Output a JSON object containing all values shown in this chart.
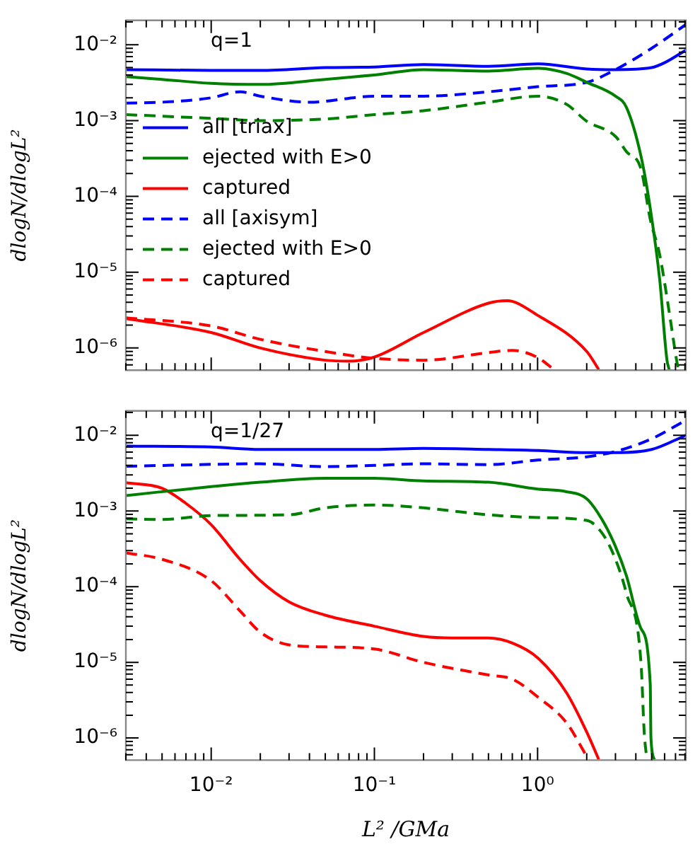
{
  "chart_data": [
    {
      "type": "line",
      "annotations": [
        "q=1"
      ],
      "ylabel": "dlogN/dlogL²",
      "log": "xy",
      "legend": "left",
      "tick_labels": "y",
      "marker": "none",
      "xlim": [
        0.003,
        8.1
      ],
      "ylim": [
        5.1e-07,
        0.021
      ],
      "xticks": [
        {
          "value": 0.003,
          "label": null
        },
        {
          "value": 0.004,
          "label": null
        },
        {
          "value": 0.005,
          "label": null
        },
        {
          "value": 0.006,
          "label": null
        },
        {
          "value": 0.007,
          "label": null
        },
        {
          "value": 0.008,
          "label": null
        },
        {
          "value": 0.009,
          "label": null
        },
        {
          "value": 0.01,
          "label": null
        },
        {
          "value": 0.02,
          "label": null
        },
        {
          "value": 0.03,
          "label": null
        },
        {
          "value": 0.04,
          "label": null
        },
        {
          "value": 0.05,
          "label": null
        },
        {
          "value": 0.06,
          "label": null
        },
        {
          "value": 0.07,
          "label": null
        },
        {
          "value": 0.08,
          "label": null
        },
        {
          "value": 0.09,
          "label": null
        },
        {
          "value": 0.1,
          "label": null
        },
        {
          "value": 0.2,
          "label": null
        },
        {
          "value": 0.3,
          "label": null
        },
        {
          "value": 0.4,
          "label": null
        },
        {
          "value": 0.5,
          "label": null
        },
        {
          "value": 0.6,
          "label": null
        },
        {
          "value": 0.7,
          "label": null
        },
        {
          "value": 0.8,
          "label": null
        },
        {
          "value": 0.9,
          "label": null
        },
        {
          "value": 1,
          "label": null
        },
        {
          "value": 2,
          "label": null
        },
        {
          "value": 3,
          "label": null
        },
        {
          "value": 4,
          "label": null
        },
        {
          "value": 5,
          "label": null
        },
        {
          "value": 6,
          "label": null
        },
        {
          "value": 7,
          "label": null
        },
        {
          "value": 8,
          "label": null
        }
      ],
      "yticks": [
        {
          "value": 6e-07,
          "label": null
        },
        {
          "value": 7e-07,
          "label": null
        },
        {
          "value": 8e-07,
          "label": null
        },
        {
          "value": 9e-07,
          "label": null
        },
        {
          "value": 1e-06,
          "label": "10⁻⁶"
        },
        {
          "value": 2e-06,
          "label": null
        },
        {
          "value": 3e-06,
          "label": null
        },
        {
          "value": 4e-06,
          "label": null
        },
        {
          "value": 5e-06,
          "label": null
        },
        {
          "value": 6e-06,
          "label": null
        },
        {
          "value": 7e-06,
          "label": null
        },
        {
          "value": 8e-06,
          "label": null
        },
        {
          "value": 9e-06,
          "label": null
        },
        {
          "value": 1e-05,
          "label": "10⁻⁵"
        },
        {
          "value": 2e-05,
          "label": null
        },
        {
          "value": 3e-05,
          "label": null
        },
        {
          "value": 4e-05,
          "label": null
        },
        {
          "value": 5e-05,
          "label": null
        },
        {
          "value": 6e-05,
          "label": null
        },
        {
          "value": 7e-05,
          "label": null
        },
        {
          "value": 8e-05,
          "label": null
        },
        {
          "value": 9e-05,
          "label": null
        },
        {
          "value": 0.0001,
          "label": "10⁻⁴"
        },
        {
          "value": 0.0002,
          "label": null
        },
        {
          "value": 0.0003,
          "label": null
        },
        {
          "value": 0.0004,
          "label": null
        },
        {
          "value": 0.0005,
          "label": null
        },
        {
          "value": 0.0006,
          "label": null
        },
        {
          "value": 0.0007,
          "label": null
        },
        {
          "value": 0.0008,
          "label": null
        },
        {
          "value": 0.0009,
          "label": null
        },
        {
          "value": 0.001,
          "label": "10⁻³"
        },
        {
          "value": 0.002,
          "label": null
        },
        {
          "value": 0.003,
          "label": null
        },
        {
          "value": 0.004,
          "label": null
        },
        {
          "value": 0.005,
          "label": null
        },
        {
          "value": 0.006,
          "label": null
        },
        {
          "value": 0.007,
          "label": null
        },
        {
          "value": 0.008,
          "label": null
        },
        {
          "value": 0.009,
          "label": null
        },
        {
          "value": 0.01,
          "label": "10⁻²"
        },
        {
          "value": 0.02,
          "label": null
        }
      ],
      "series": [
        {
          "name": "all [triax]",
          "color": "#0000ff",
          "line_style": "solid",
          "x": [
            0.003,
            0.01,
            0.02,
            0.05,
            0.1,
            0.2,
            0.5,
            1,
            2,
            3,
            5,
            6,
            8.1
          ],
          "values": [
            0.0047,
            0.0046,
            0.0046,
            0.005,
            0.0051,
            0.0055,
            0.0052,
            0.0056,
            0.0048,
            0.0047,
            0.005,
            0.0058,
            0.0085
          ]
        },
        {
          "name": "ejected with E>0",
          "color": "#008000",
          "line_style": "solid",
          "x": [
            0.003,
            0.005,
            0.01,
            0.02,
            0.05,
            0.1,
            0.2,
            0.5,
            1,
            1.5,
            2,
            3,
            3.5,
            4.3,
            4.9,
            5.6,
            6.2,
            6.4
          ],
          "values": [
            0.0038,
            0.0035,
            0.0031,
            0.003,
            0.0035,
            0.004,
            0.0047,
            0.0045,
            0.0049,
            0.0042,
            0.0032,
            0.0021,
            0.0015,
            0.00034,
            7e-05,
            8e-06,
            7e-07,
            5.2e-07
          ]
        },
        {
          "name": "captured",
          "color": "#ff0000",
          "line_style": "solid",
          "x": [
            0.003,
            0.01,
            0.02,
            0.05,
            0.07,
            0.1,
            0.2,
            0.5,
            0.65,
            1,
            2,
            2.37
          ],
          "values": [
            2.45e-06,
            1.6e-06,
            1e-06,
            6.9e-07,
            6.7e-07,
            7.6e-07,
            1.6e-06,
            3.9e-06,
            4.2e-06,
            2.7e-06,
            9e-07,
            5.2e-07
          ]
        },
        {
          "name": "all [axisym]",
          "color": "#0000ff",
          "line_style": "dashed",
          "x": [
            0.003,
            0.005,
            0.01,
            0.015,
            0.02,
            0.04,
            0.1,
            0.2,
            0.5,
            1,
            2,
            3,
            5,
            8.1
          ],
          "values": [
            0.0017,
            0.00175,
            0.002,
            0.0024,
            0.0021,
            0.00175,
            0.0021,
            0.0021,
            0.0024,
            0.0028,
            0.0032,
            0.0047,
            0.009,
            0.0185
          ]
        },
        {
          "name": "ejected with E>0",
          "color": "#008000",
          "line_style": "dashed",
          "x": [
            0.003,
            0.01,
            0.02,
            0.05,
            0.1,
            0.2,
            0.5,
            1,
            1.5,
            2,
            3,
            3.5,
            4.3,
            4.9,
            5.6,
            6.45,
            7.1,
            7.3
          ],
          "values": [
            0.0012,
            0.00107,
            0.001,
            0.00105,
            0.0012,
            0.00135,
            0.00175,
            0.0021,
            0.00165,
            0.00098,
            0.00062,
            0.00039,
            0.00023,
            5e-05,
            1.7e-05,
            2.7e-06,
            7e-07,
            5.2e-07
          ]
        },
        {
          "name": "captured",
          "color": "#ff0000",
          "line_style": "dashed",
          "x": [
            0.003,
            0.01,
            0.02,
            0.05,
            0.1,
            0.2,
            0.5,
            0.7,
            1,
            1.26
          ],
          "values": [
            2.5e-06,
            1.95e-06,
            1.3e-06,
            9e-07,
            7.3e-07,
            6.9e-07,
            8.7e-07,
            9.3e-07,
            7.5e-07,
            5.2e-07
          ]
        }
      ]
    },
    {
      "type": "line",
      "annotations": [
        "q=1/27"
      ],
      "xlabel": "L² /GMa",
      "ylabel": "dlogN/dlogL²",
      "log": "xy",
      "marker": "none",
      "xlim": [
        0.003,
        8.1
      ],
      "ylim": [
        5.1e-07,
        0.021
      ],
      "xticks": [
        {
          "value": 0.003,
          "label": null
        },
        {
          "value": 0.004,
          "label": null
        },
        {
          "value": 0.005,
          "label": null
        },
        {
          "value": 0.006,
          "label": null
        },
        {
          "value": 0.007,
          "label": null
        },
        {
          "value": 0.008,
          "label": null
        },
        {
          "value": 0.009,
          "label": null
        },
        {
          "value": 0.01,
          "label": "10⁻²"
        },
        {
          "value": 0.02,
          "label": null
        },
        {
          "value": 0.03,
          "label": null
        },
        {
          "value": 0.04,
          "label": null
        },
        {
          "value": 0.05,
          "label": null
        },
        {
          "value": 0.06,
          "label": null
        },
        {
          "value": 0.07,
          "label": null
        },
        {
          "value": 0.08,
          "label": null
        },
        {
          "value": 0.09,
          "label": null
        },
        {
          "value": 0.1,
          "label": "10⁻¹"
        },
        {
          "value": 0.2,
          "label": null
        },
        {
          "value": 0.3,
          "label": null
        },
        {
          "value": 0.4,
          "label": null
        },
        {
          "value": 0.5,
          "label": null
        },
        {
          "value": 0.6,
          "label": null
        },
        {
          "value": 0.7,
          "label": null
        },
        {
          "value": 0.8,
          "label": null
        },
        {
          "value": 0.9,
          "label": null
        },
        {
          "value": 1,
          "label": "10⁰"
        },
        {
          "value": 2,
          "label": null
        },
        {
          "value": 3,
          "label": null
        },
        {
          "value": 4,
          "label": null
        },
        {
          "value": 5,
          "label": null
        },
        {
          "value": 6,
          "label": null
        },
        {
          "value": 7,
          "label": null
        },
        {
          "value": 8,
          "label": null
        }
      ],
      "yticks": [
        {
          "value": 6e-07,
          "label": null
        },
        {
          "value": 7e-07,
          "label": null
        },
        {
          "value": 8e-07,
          "label": null
        },
        {
          "value": 9e-07,
          "label": null
        },
        {
          "value": 1e-06,
          "label": "10⁻⁶"
        },
        {
          "value": 2e-06,
          "label": null
        },
        {
          "value": 3e-06,
          "label": null
        },
        {
          "value": 4e-06,
          "label": null
        },
        {
          "value": 5e-06,
          "label": null
        },
        {
          "value": 6e-06,
          "label": null
        },
        {
          "value": 7e-06,
          "label": null
        },
        {
          "value": 8e-06,
          "label": null
        },
        {
          "value": 9e-06,
          "label": null
        },
        {
          "value": 1e-05,
          "label": "10⁻⁵"
        },
        {
          "value": 2e-05,
          "label": null
        },
        {
          "value": 3e-05,
          "label": null
        },
        {
          "value": 4e-05,
          "label": null
        },
        {
          "value": 5e-05,
          "label": null
        },
        {
          "value": 6e-05,
          "label": null
        },
        {
          "value": 7e-05,
          "label": null
        },
        {
          "value": 8e-05,
          "label": null
        },
        {
          "value": 9e-05,
          "label": null
        },
        {
          "value": 0.0001,
          "label": "10⁻⁴"
        },
        {
          "value": 0.0002,
          "label": null
        },
        {
          "value": 0.0003,
          "label": null
        },
        {
          "value": 0.0004,
          "label": null
        },
        {
          "value": 0.0005,
          "label": null
        },
        {
          "value": 0.0006,
          "label": null
        },
        {
          "value": 0.0007,
          "label": null
        },
        {
          "value": 0.0008,
          "label": null
        },
        {
          "value": 0.0009,
          "label": null
        },
        {
          "value": 0.001,
          "label": "10⁻³"
        },
        {
          "value": 0.002,
          "label": null
        },
        {
          "value": 0.003,
          "label": null
        },
        {
          "value": 0.004,
          "label": null
        },
        {
          "value": 0.005,
          "label": null
        },
        {
          "value": 0.006,
          "label": null
        },
        {
          "value": 0.007,
          "label": null
        },
        {
          "value": 0.008,
          "label": null
        },
        {
          "value": 0.009,
          "label": null
        },
        {
          "value": 0.01,
          "label": "10⁻²"
        },
        {
          "value": 0.02,
          "label": null
        }
      ],
      "series": [
        {
          "color": "#0000ff",
          "line_style": "solid",
          "x": [
            0.003,
            0.01,
            0.02,
            0.1,
            0.2,
            0.5,
            1,
            2,
            3,
            5,
            8.1
          ],
          "values": [
            0.0072,
            0.007,
            0.0065,
            0.0065,
            0.0067,
            0.0065,
            0.0063,
            0.0059,
            0.0059,
            0.0065,
            0.01
          ]
        },
        {
          "color": "#0000ff",
          "line_style": "dashed",
          "x": [
            0.003,
            0.02,
            0.05,
            0.1,
            0.2,
            0.5,
            1,
            2,
            3,
            5,
            8.1
          ],
          "values": [
            0.0039,
            0.0042,
            0.00385,
            0.004,
            0.0042,
            0.0041,
            0.0047,
            0.0052,
            0.0061,
            0.009,
            0.0158
          ]
        },
        {
          "color": "#008000",
          "line_style": "solid",
          "x": [
            0.003,
            0.01,
            0.02,
            0.05,
            0.1,
            0.2,
            0.5,
            1,
            1.5,
            2,
            2.5,
            3,
            3.5,
            4.3,
            4.9,
            4.95,
            5.2
          ],
          "values": [
            0.0016,
            0.0021,
            0.0024,
            0.0027,
            0.0027,
            0.0025,
            0.0024,
            0.00195,
            0.0018,
            0.00145,
            0.00075,
            0.00034,
            0.00014,
            2.8e-05,
            5.2e-06,
            1e-06,
            5.2e-07
          ]
        },
        {
          "color": "#008000",
          "line_style": "dashed",
          "x": [
            0.003,
            0.005,
            0.01,
            0.03,
            0.05,
            0.1,
            0.2,
            0.5,
            1,
            2,
            2.5,
            3,
            3.5,
            4.3,
            4.5,
            4.67
          ],
          "values": [
            0.00079,
            0.00077,
            0.00087,
            0.00089,
            0.0011,
            0.0012,
            0.0011,
            0.00089,
            0.00082,
            0.00075,
            0.0005,
            0.00023,
            8.2e-05,
            1e-05,
            1.2e-06,
            5.2e-07
          ]
        },
        {
          "color": "#ff0000",
          "line_style": "solid",
          "x": [
            0.003,
            0.005,
            0.007,
            0.01,
            0.015,
            0.02,
            0.03,
            0.05,
            0.1,
            0.2,
            0.3,
            0.5,
            0.7,
            1,
            1.5,
            2,
            2.37
          ],
          "values": [
            0.00236,
            0.002,
            0.00126,
            0.00066,
            0.00023,
            0.00012,
            6.3e-05,
            4.2e-05,
            3e-05,
            2.2e-05,
            2.1e-05,
            2.1e-05,
            1.8e-05,
            1.15e-05,
            4e-06,
            1.2e-06,
            5.2e-07
          ]
        },
        {
          "color": "#ff0000",
          "line_style": "dashed",
          "x": [
            0.003,
            0.005,
            0.01,
            0.015,
            0.02,
            0.03,
            0.05,
            0.1,
            0.2,
            0.5,
            0.7,
            1,
            1.5,
            2.05
          ],
          "values": [
            0.00028,
            0.00023,
            0.00012,
            4.8e-05,
            2.5e-05,
            1.7e-05,
            1.6e-05,
            1.5e-05,
            1e-05,
            6.8e-06,
            6e-06,
            3.5e-06,
            1.6e-06,
            5.2e-07
          ]
        }
      ]
    }
  ]
}
